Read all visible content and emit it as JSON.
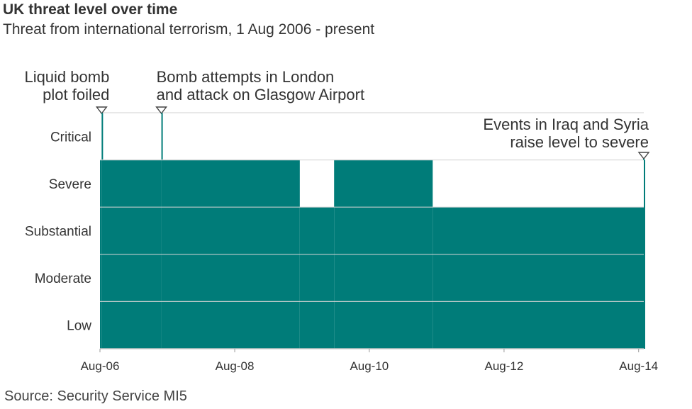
{
  "title": "UK threat level over time",
  "subtitle": "Threat from international terrorism, 1 Aug 2006 - present",
  "source": "Source: Security Service MI5",
  "colors": {
    "fill": "#007c79",
    "gridline": "#c8c8c8",
    "text": "#333333"
  },
  "chart_data": {
    "type": "area",
    "title": "UK threat level over time",
    "subtitle": "Threat from international terrorism, 1 Aug 2006 - present",
    "x_type": "date",
    "xlim": [
      "2006-08-01",
      "2014-08-29"
    ],
    "x_ticks": [
      {
        "date": "2006-08-01",
        "label": "Aug-06"
      },
      {
        "date": "2008-08-01",
        "label": "Aug-08"
      },
      {
        "date": "2010-08-01",
        "label": "Aug-10"
      },
      {
        "date": "2012-08-01",
        "label": "Aug-12"
      },
      {
        "date": "2014-08-01",
        "label": "Aug-14"
      }
    ],
    "y_levels": [
      "Low",
      "Moderate",
      "Substantial",
      "Severe",
      "Critical"
    ],
    "grid": true,
    "segments": [
      {
        "start": "2006-08-01",
        "end": "2006-08-10",
        "level": "Severe"
      },
      {
        "start": "2006-08-10",
        "end": "2006-08-14",
        "level": "Critical"
      },
      {
        "start": "2006-08-14",
        "end": "2007-06-30",
        "level": "Severe"
      },
      {
        "start": "2007-06-30",
        "end": "2007-07-04",
        "level": "Critical"
      },
      {
        "start": "2007-07-04",
        "end": "2009-07-20",
        "level": "Severe"
      },
      {
        "start": "2009-07-20",
        "end": "2010-01-22",
        "level": "Substantial"
      },
      {
        "start": "2010-01-22",
        "end": "2011-07-11",
        "level": "Severe"
      },
      {
        "start": "2011-07-11",
        "end": "2014-08-29",
        "level": "Substantial"
      },
      {
        "start": "2014-08-29",
        "end": "2014-08-29",
        "level": "Severe"
      }
    ],
    "annotations": [
      {
        "date": "2006-08-10",
        "level": "Critical",
        "lines": [
          "Liquid bomb",
          "plot foiled"
        ],
        "align": "right"
      },
      {
        "date": "2007-06-30",
        "level": "Critical",
        "lines": [
          "Bomb attempts in London",
          "and attack on Glasgow Airport"
        ],
        "align": "left"
      },
      {
        "date": "2014-08-29",
        "level": "Severe",
        "lines": [
          "Events in Iraq and Syria",
          "raise level to severe"
        ],
        "align": "right"
      }
    ]
  }
}
